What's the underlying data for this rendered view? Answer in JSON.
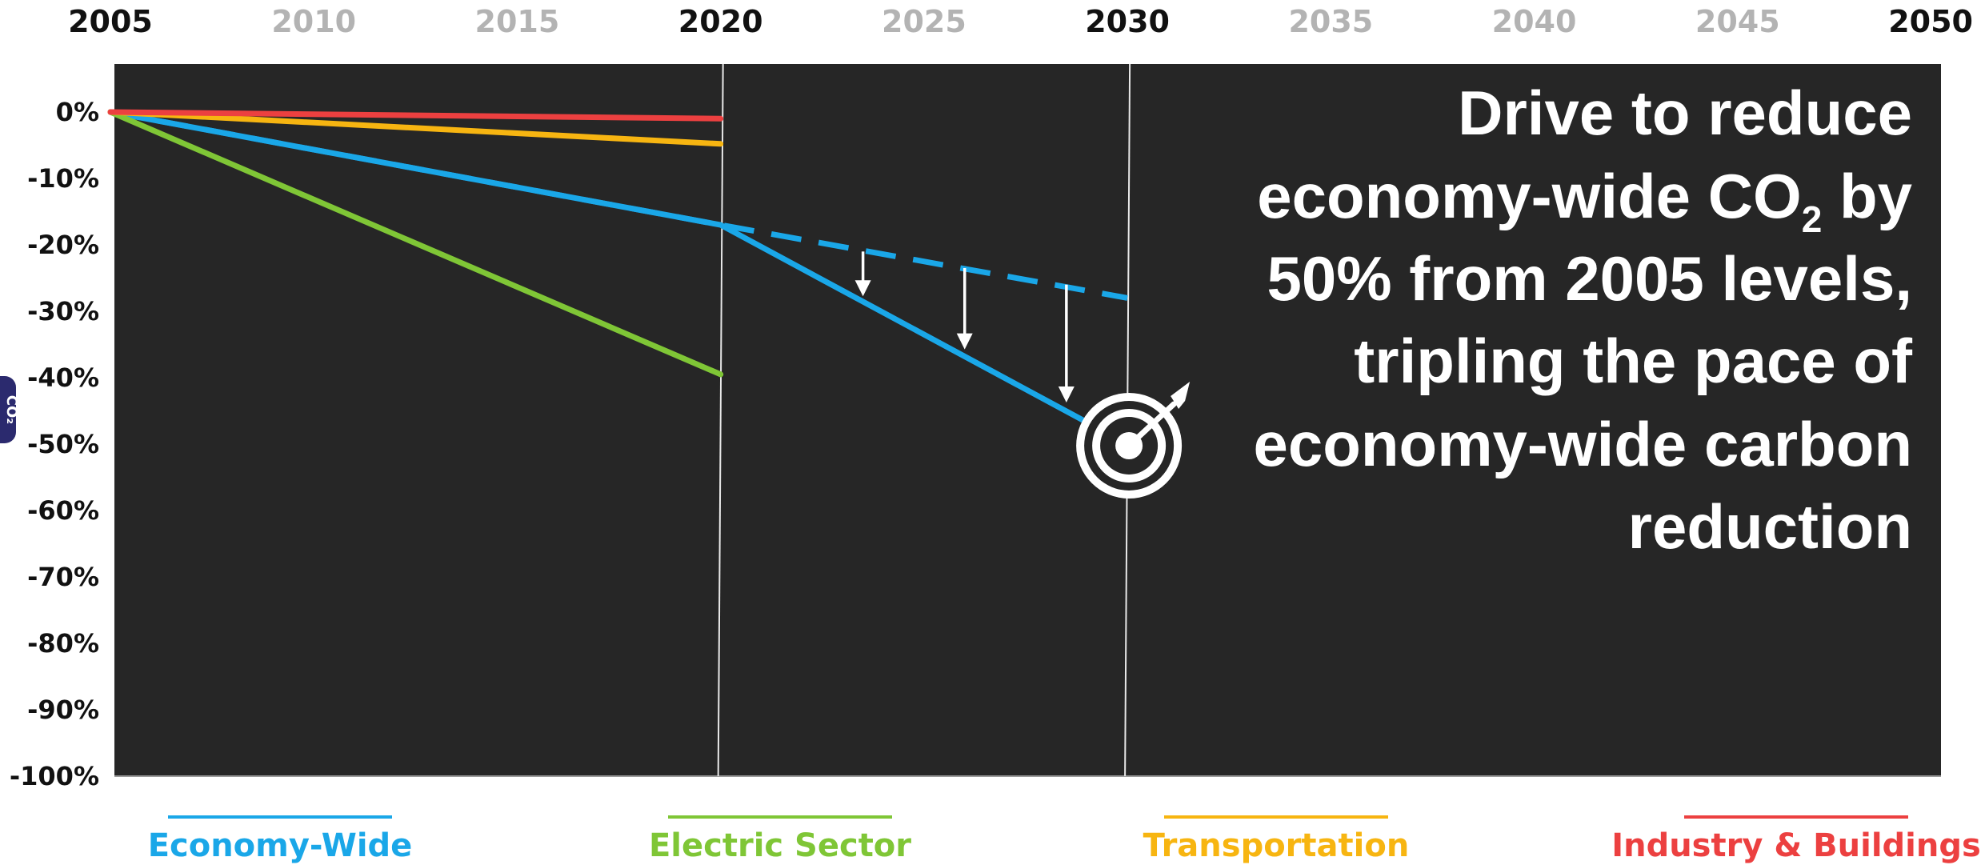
{
  "chart_data": {
    "type": "line",
    "x_ticks": [
      "2005",
      "2010",
      "2015",
      "2020",
      "2025",
      "2030",
      "2035",
      "2040",
      "2045",
      "2050"
    ],
    "x_ticks_emphasized": [
      "2005",
      "2020",
      "2030",
      "2050"
    ],
    "x_range": [
      2005,
      2050
    ],
    "y_ticks": [
      "0%",
      "-10%",
      "-20%",
      "-30%",
      "-40%",
      "-50%",
      "-60%",
      "-70%",
      "-80%",
      "-90%",
      "-100%"
    ],
    "ylim": [
      -100,
      0
    ],
    "ylabel": "CO₂",
    "plot_background": "#262626",
    "series": [
      {
        "name": "Economy-Wide",
        "color": "#1aa7e8",
        "style": "solid",
        "x": [
          2005,
          2020,
          2030
        ],
        "y": [
          0,
          -17,
          -50
        ]
      },
      {
        "name": "Economy-Wide",
        "color": "#1aa7e8",
        "style": "dashed",
        "x": [
          2005,
          2020,
          2030
        ],
        "y": [
          0,
          -17,
          -28
        ]
      },
      {
        "name": "Electric Sector",
        "color": "#7fc636",
        "style": "solid",
        "x": [
          2005,
          2020
        ],
        "y": [
          0,
          -39.5
        ]
      },
      {
        "name": "Transportation",
        "color": "#f7b511",
        "style": "solid",
        "x": [
          2005,
          2020
        ],
        "y": [
          0,
          -4.8
        ]
      },
      {
        "name": "Industry & Buildings",
        "color": "#ec4040",
        "style": "solid",
        "x": [
          2005,
          2020
        ],
        "y": [
          0,
          -1
        ]
      }
    ],
    "legend": [
      {
        "label": "Economy-Wide",
        "color": "#1aa7e8"
      },
      {
        "label": "Electric Sector",
        "color": "#7fc636"
      },
      {
        "label": "Transportation",
        "color": "#f7b511"
      },
      {
        "label": "Industry & Buildings",
        "color": "#ec4040"
      }
    ],
    "legend_position": "bottom",
    "vertical_markers": [
      2020,
      2030
    ],
    "arrows": [
      {
        "x": 2023.5,
        "from_y": -21,
        "to_y": -27.5
      },
      {
        "x": 2026,
        "from_y": -23.5,
        "to_y": -35.5
      },
      {
        "x": 2028.5,
        "from_y": -26,
        "to_y": -43.5
      }
    ],
    "target_icon": {
      "name": "target-icon",
      "x": 2030,
      "y": -50
    },
    "annotation": {
      "lines": [
        "Drive to reduce",
        "economy-wide CO",
        "50% from 2005 levels,",
        "tripling the pace of",
        "economy-wide carbon",
        "reduction"
      ],
      "subscript": "2",
      "after_subscript": " by"
    }
  },
  "colors": {
    "tick_emphasized": "#111111",
    "tick_muted": "#b3b3b3",
    "marker_line": "#e8e8e8",
    "arrow": "#ffffff",
    "ylabel_badge": "#2b2a6e"
  }
}
